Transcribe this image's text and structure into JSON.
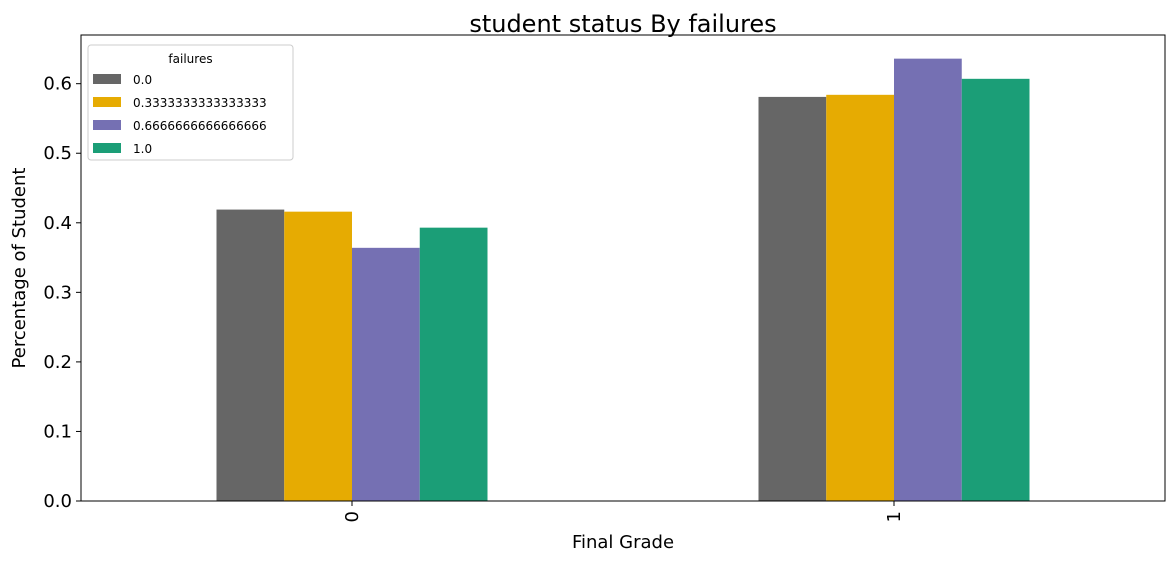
{
  "chart_data": {
    "type": "bar",
    "title": "student status By failures",
    "xlabel": "Final Grade",
    "ylabel": "Percentage of Student",
    "categories": [
      "0",
      "1"
    ],
    "ylim": [
      0,
      0.67
    ],
    "yticks": [
      "0.0",
      "0.1",
      "0.2",
      "0.3",
      "0.4",
      "0.5",
      "0.6"
    ],
    "grid": false,
    "legend": {
      "title": "failures",
      "placement": "top-left"
    },
    "series": [
      {
        "name": "0.0",
        "color": "#666666",
        "values": [
          0.419,
          0.581
        ]
      },
      {
        "name": "0.3333333333333333",
        "color": "#e6ab02",
        "values": [
          0.416,
          0.584
        ]
      },
      {
        "name": "0.6666666666666666",
        "color": "#7570b3",
        "values": [
          0.364,
          0.636
        ]
      },
      {
        "name": "1.0",
        "color": "#1b9e77",
        "values": [
          0.393,
          0.607
        ]
      }
    ]
  }
}
